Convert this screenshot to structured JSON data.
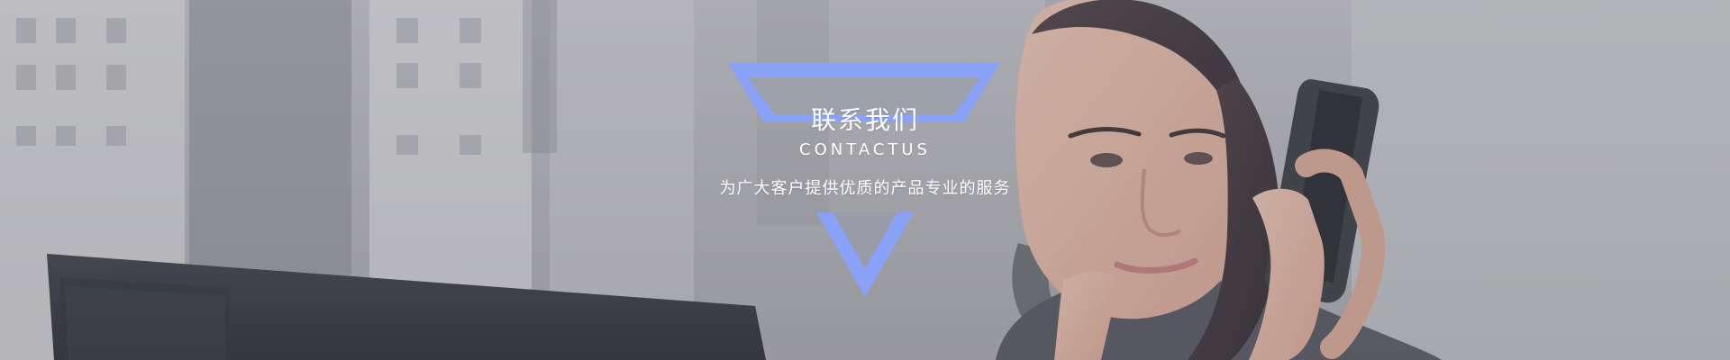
{
  "banner": {
    "title": "联系我们",
    "subtitle": "CONTACTUS",
    "tagline": "为广大客户提供优质的产品专业的服务",
    "accent_color": "#8aa1f8",
    "image_subject": "woman-on-phone-photo"
  }
}
